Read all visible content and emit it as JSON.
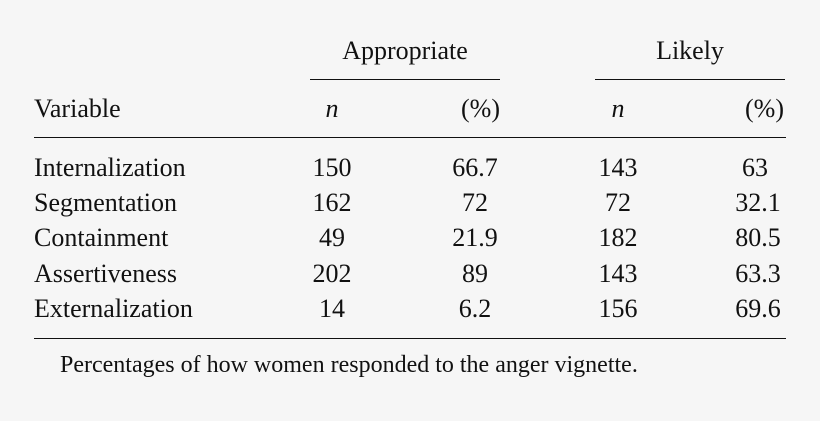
{
  "table": {
    "group_headers": {
      "appropriate": "Appropriate",
      "likely": "Likely"
    },
    "column_headers": {
      "variable": "Variable",
      "n1": "n",
      "pct1": "(%)",
      "n2": "n",
      "pct2": "(%)"
    },
    "rows": [
      {
        "variable": "Internalization",
        "app_n": "150",
        "app_pct": "66.7",
        "lik_n": "143",
        "lik_pct": "63"
      },
      {
        "variable": "Segmentation",
        "app_n": "162",
        "app_pct": "72",
        "lik_n": "72",
        "lik_pct": "32.1"
      },
      {
        "variable": "Containment",
        "app_n": "49",
        "app_pct": "21.9",
        "lik_n": "182",
        "lik_pct": "80.5"
      },
      {
        "variable": "Assertiveness",
        "app_n": "202",
        "app_pct": "89",
        "lik_n": "143",
        "lik_pct": "63.3"
      },
      {
        "variable": "Externalization",
        "app_n": "14",
        "app_pct": "6.2",
        "lik_n": "156",
        "lik_pct": "69.6"
      }
    ],
    "caption": "Percentages of how women responded to the anger vignette."
  }
}
